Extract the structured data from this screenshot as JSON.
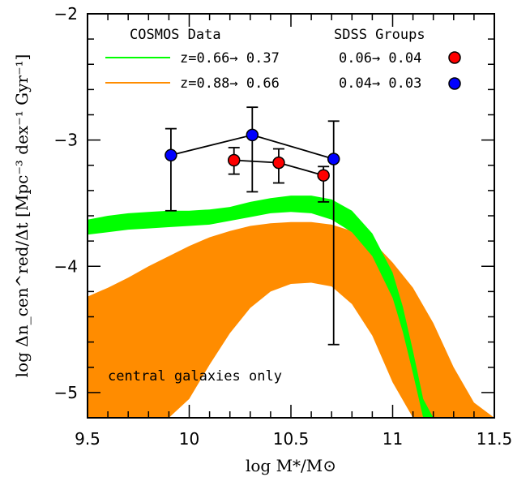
{
  "chart_data": {
    "type": "line",
    "xlabel": "log M*/M⊙",
    "ylabel": "log Δn_cen^red/Δt [Mpc⁻³ dex⁻¹ Gyr⁻¹]",
    "xlim": [
      9.5,
      11.5
    ],
    "ylim": [
      -5.2,
      -2.0
    ],
    "x_ticks": [
      9.5,
      10,
      10.5,
      11,
      11.5
    ],
    "x_tick_labels": [
      "9.5",
      "10",
      "10.5",
      "11",
      "11.5"
    ],
    "y_ticks": [
      -5,
      -4,
      -3,
      -2
    ],
    "y_tick_labels": [
      "−5",
      "−4",
      "−3",
      "−2"
    ],
    "legend": {
      "left_title": "COSMOS Data",
      "right_title": "SDSS Groups",
      "entries": [
        {
          "line_label": "z=0.66→ 0.37",
          "line_color": "#00ff00",
          "point_label": "0.06→ 0.04",
          "point_color": "#ff0000"
        },
        {
          "line_label": "z=0.88→ 0.66",
          "line_color": "#ff8c00",
          "point_label": "0.04→ 0.03",
          "point_color": "#0000ff"
        }
      ]
    },
    "annotation": "central galaxies only",
    "bands": [
      {
        "name": "z=0.66→ 0.37",
        "color": "#00ff00",
        "x": [
          9.5,
          9.6,
          9.7,
          9.8,
          9.9,
          10.0,
          10.1,
          10.2,
          10.3,
          10.4,
          10.5,
          10.6,
          10.7,
          10.8,
          10.9,
          11.0,
          11.05,
          11.1,
          11.15,
          11.2,
          11.25
        ],
        "lower": [
          -3.75,
          -3.73,
          -3.71,
          -3.7,
          -3.69,
          -3.68,
          -3.67,
          -3.64,
          -3.61,
          -3.58,
          -3.57,
          -3.58,
          -3.63,
          -3.73,
          -3.92,
          -4.25,
          -4.52,
          -4.85,
          -5.2,
          -5.2,
          -5.2
        ],
        "upper": [
          -3.63,
          -3.6,
          -3.58,
          -3.57,
          -3.56,
          -3.56,
          -3.55,
          -3.53,
          -3.49,
          -3.46,
          -3.44,
          -3.44,
          -3.47,
          -3.56,
          -3.74,
          -4.05,
          -4.32,
          -4.67,
          -5.05,
          -5.2,
          -5.2
        ],
        "x_lower_end": 11.15,
        "x_upper_end": 11.25
      },
      {
        "name": "z=0.88→ 0.66",
        "color": "#ff8c00",
        "x": [
          9.5,
          9.6,
          9.7,
          9.8,
          9.9,
          10.0,
          10.1,
          10.2,
          10.3,
          10.4,
          10.5,
          10.6,
          10.7,
          10.8,
          10.9,
          11.0,
          11.1,
          11.2,
          11.3,
          11.4,
          11.5
        ],
        "lower": [
          -5.2,
          -5.2,
          -5.2,
          -5.2,
          -5.2,
          -5.05,
          -4.78,
          -4.53,
          -4.33,
          -4.2,
          -4.14,
          -4.13,
          -4.16,
          -4.3,
          -4.55,
          -4.92,
          -5.2,
          -5.2,
          -5.2,
          -5.2,
          -5.2
        ],
        "upper": [
          -4.24,
          -4.17,
          -4.09,
          -4.0,
          -3.92,
          -3.84,
          -3.77,
          -3.72,
          -3.68,
          -3.66,
          -3.65,
          -3.65,
          -3.67,
          -3.72,
          -3.8,
          -3.97,
          -4.17,
          -4.45,
          -4.8,
          -5.08,
          -5.2
        ]
      }
    ],
    "series": [
      {
        "name": "0.06→ 0.04",
        "color": "#ff0000",
        "x": [
          10.22,
          10.44,
          10.66
        ],
        "y": [
          -3.16,
          -3.18,
          -3.28
        ],
        "err_low": [
          -3.27,
          -3.34,
          -3.49
        ],
        "err_high": [
          -3.06,
          -3.07,
          -3.21
        ]
      },
      {
        "name": "0.04→ 0.03",
        "color": "#0000ff",
        "x": [
          9.91,
          10.31,
          10.71
        ],
        "y": [
          -3.12,
          -2.96,
          -3.15
        ],
        "err_low": [
          -3.56,
          -3.41,
          -4.62
        ],
        "err_high": [
          -2.91,
          -2.74,
          -2.85
        ]
      }
    ]
  }
}
